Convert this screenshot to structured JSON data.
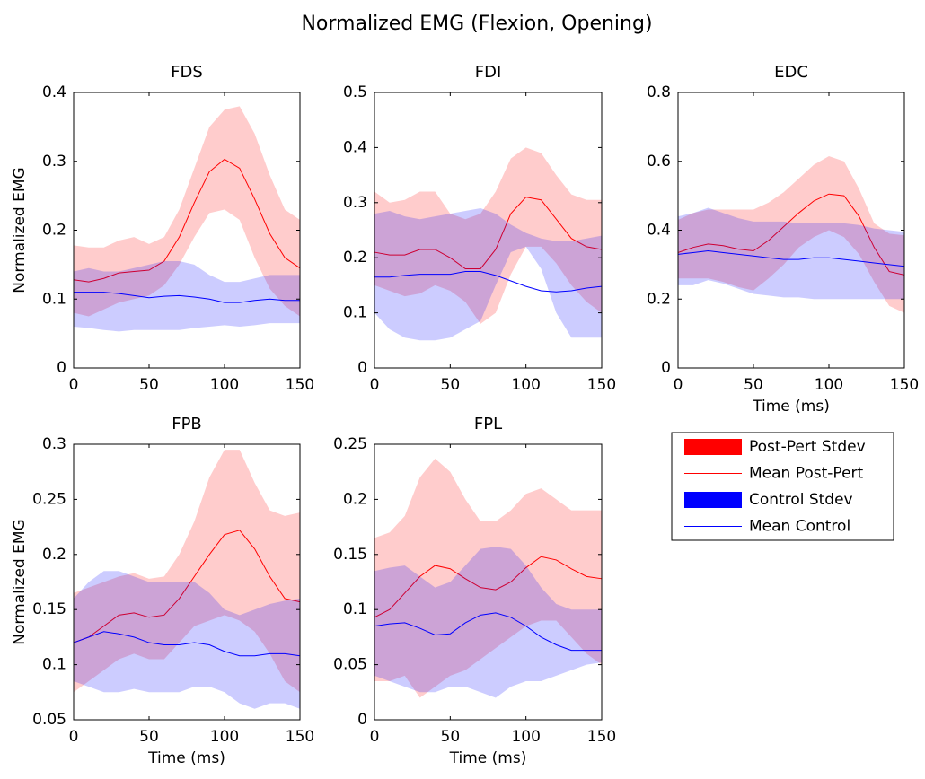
{
  "title": "Normalized EMG (Flexion, Opening)",
  "legend": [
    {
      "name": "Post-Pert Stdev",
      "color": "#ff0000"
    },
    {
      "name": "Mean Post-Pert",
      "color": "#ff0000"
    },
    {
      "name": "Control Stdev",
      "color": "#0000ff"
    },
    {
      "name": "Mean Control",
      "color": "#0000ff"
    }
  ],
  "chart_data": [
    {
      "type": "line",
      "title": "FDS",
      "ylabel": "Normalized EMG",
      "x": [
        0,
        10,
        20,
        30,
        40,
        50,
        60,
        70,
        80,
        90,
        100,
        110,
        120,
        130,
        140,
        150
      ],
      "xlim": [
        0,
        150
      ],
      "xticks": [
        0,
        50,
        100,
        150
      ],
      "ylim": [
        0,
        0.4
      ],
      "yticks": [
        0,
        0.1,
        0.2,
        0.3,
        0.4
      ],
      "series": [
        {
          "upper": [
            0.178,
            0.175,
            0.175,
            0.185,
            0.19,
            0.18,
            0.19,
            0.23,
            0.29,
            0.35,
            0.375,
            0.38,
            0.34,
            0.28,
            0.23,
            0.215
          ],
          "lower": [
            0.08,
            0.075,
            0.085,
            0.095,
            0.1,
            0.105,
            0.12,
            0.15,
            0.19,
            0.225,
            0.23,
            0.215,
            0.16,
            0.115,
            0.09,
            0.075
          ]
        },
        {
          "values": [
            0.128,
            0.125,
            0.13,
            0.138,
            0.14,
            0.142,
            0.155,
            0.19,
            0.24,
            0.285,
            0.303,
            0.29,
            0.245,
            0.195,
            0.16,
            0.145
          ]
        },
        {
          "upper": [
            0.14,
            0.145,
            0.14,
            0.14,
            0.145,
            0.15,
            0.155,
            0.155,
            0.15,
            0.135,
            0.125,
            0.125,
            0.13,
            0.135,
            0.135,
            0.135
          ],
          "lower": [
            0.06,
            0.058,
            0.055,
            0.053,
            0.055,
            0.055,
            0.055,
            0.055,
            0.058,
            0.06,
            0.062,
            0.06,
            0.062,
            0.065,
            0.065,
            0.065
          ]
        },
        {
          "values": [
            0.11,
            0.11,
            0.11,
            0.108,
            0.105,
            0.102,
            0.104,
            0.105,
            0.103,
            0.1,
            0.095,
            0.095,
            0.098,
            0.1,
            0.098,
            0.098
          ]
        }
      ]
    },
    {
      "type": "line",
      "title": "FDI",
      "x": [
        0,
        10,
        20,
        30,
        40,
        50,
        60,
        70,
        80,
        90,
        100,
        110,
        120,
        130,
        140,
        150
      ],
      "xlim": [
        0,
        150
      ],
      "xticks": [
        0,
        50,
        100,
        150
      ],
      "ylim": [
        0,
        0.5
      ],
      "yticks": [
        0,
        0.1,
        0.2,
        0.3,
        0.4,
        0.5
      ],
      "series": [
        {
          "upper": [
            0.32,
            0.3,
            0.305,
            0.32,
            0.32,
            0.28,
            0.27,
            0.28,
            0.32,
            0.38,
            0.4,
            0.39,
            0.35,
            0.315,
            0.305,
            0.305
          ],
          "lower": [
            0.15,
            0.14,
            0.13,
            0.135,
            0.15,
            0.14,
            0.12,
            0.08,
            0.1,
            0.17,
            0.22,
            0.22,
            0.19,
            0.15,
            0.12,
            0.1
          ]
        },
        {
          "values": [
            0.21,
            0.205,
            0.205,
            0.215,
            0.215,
            0.2,
            0.18,
            0.18,
            0.215,
            0.28,
            0.31,
            0.305,
            0.27,
            0.235,
            0.22,
            0.215
          ]
        },
        {
          "upper": [
            0.28,
            0.285,
            0.275,
            0.27,
            0.275,
            0.28,
            0.285,
            0.29,
            0.28,
            0.26,
            0.245,
            0.235,
            0.23,
            0.23,
            0.235,
            0.24
          ],
          "lower": [
            0.1,
            0.07,
            0.055,
            0.05,
            0.05,
            0.055,
            0.07,
            0.085,
            0.15,
            0.21,
            0.22,
            0.18,
            0.1,
            0.055,
            0.055,
            0.055
          ]
        },
        {
          "values": [
            0.165,
            0.165,
            0.168,
            0.17,
            0.17,
            0.17,
            0.175,
            0.175,
            0.168,
            0.158,
            0.148,
            0.14,
            0.138,
            0.14,
            0.145,
            0.148
          ]
        }
      ]
    },
    {
      "type": "line",
      "title": "EDC",
      "xlabel": "Time (ms)",
      "x": [
        0,
        10,
        20,
        30,
        40,
        50,
        60,
        70,
        80,
        90,
        100,
        110,
        120,
        130,
        140,
        150
      ],
      "xlim": [
        0,
        150
      ],
      "xticks": [
        0,
        50,
        100,
        150
      ],
      "ylim": [
        0,
        0.8
      ],
      "yticks": [
        0,
        0.2,
        0.4,
        0.6,
        0.8
      ],
      "series": [
        {
          "upper": [
            0.43,
            0.45,
            0.46,
            0.46,
            0.46,
            0.46,
            0.48,
            0.51,
            0.55,
            0.59,
            0.615,
            0.6,
            0.52,
            0.42,
            0.39,
            0.385
          ],
          "lower": [
            0.26,
            0.26,
            0.26,
            0.25,
            0.235,
            0.225,
            0.26,
            0.3,
            0.35,
            0.38,
            0.4,
            0.38,
            0.33,
            0.25,
            0.18,
            0.16
          ]
        },
        {
          "values": [
            0.335,
            0.35,
            0.36,
            0.355,
            0.345,
            0.34,
            0.37,
            0.41,
            0.45,
            0.485,
            0.505,
            0.5,
            0.44,
            0.35,
            0.28,
            0.27
          ]
        },
        {
          "upper": [
            0.44,
            0.45,
            0.465,
            0.45,
            0.435,
            0.425,
            0.425,
            0.425,
            0.42,
            0.42,
            0.42,
            0.42,
            0.415,
            0.405,
            0.4,
            0.395
          ],
          "lower": [
            0.24,
            0.24,
            0.255,
            0.245,
            0.23,
            0.215,
            0.21,
            0.205,
            0.205,
            0.2,
            0.2,
            0.2,
            0.2,
            0.2,
            0.2,
            0.2
          ]
        },
        {
          "values": [
            0.33,
            0.335,
            0.34,
            0.335,
            0.33,
            0.325,
            0.32,
            0.315,
            0.315,
            0.32,
            0.32,
            0.315,
            0.31,
            0.305,
            0.3,
            0.295
          ]
        }
      ]
    },
    {
      "type": "line",
      "title": "FPB",
      "xlabel": "Time (ms)",
      "ylabel": "Normalized EMG",
      "x": [
        0,
        10,
        20,
        30,
        40,
        50,
        60,
        70,
        80,
        90,
        100,
        110,
        120,
        130,
        140,
        150
      ],
      "xlim": [
        0,
        150
      ],
      "xticks": [
        0,
        50,
        100,
        150
      ],
      "ylim": [
        0.05,
        0.3
      ],
      "yticks": [
        0.05,
        0.1,
        0.15,
        0.2,
        0.25,
        0.3
      ],
      "series": [
        {
          "upper": [
            0.165,
            0.17,
            0.175,
            0.18,
            0.183,
            0.178,
            0.18,
            0.2,
            0.23,
            0.27,
            0.295,
            0.295,
            0.265,
            0.24,
            0.235,
            0.238
          ],
          "lower": [
            0.075,
            0.085,
            0.095,
            0.105,
            0.11,
            0.105,
            0.105,
            0.12,
            0.135,
            0.14,
            0.145,
            0.14,
            0.13,
            0.11,
            0.085,
            0.075
          ]
        },
        {
          "values": [
            0.12,
            0.125,
            0.135,
            0.145,
            0.147,
            0.143,
            0.145,
            0.16,
            0.18,
            0.2,
            0.218,
            0.222,
            0.205,
            0.18,
            0.16,
            0.157
          ]
        },
        {
          "upper": [
            0.16,
            0.175,
            0.185,
            0.185,
            0.18,
            0.175,
            0.175,
            0.175,
            0.175,
            0.165,
            0.15,
            0.145,
            0.15,
            0.155,
            0.158,
            0.16
          ],
          "lower": [
            0.085,
            0.08,
            0.075,
            0.075,
            0.078,
            0.075,
            0.075,
            0.075,
            0.08,
            0.08,
            0.075,
            0.065,
            0.06,
            0.065,
            0.065,
            0.06
          ]
        },
        {
          "values": [
            0.12,
            0.125,
            0.13,
            0.128,
            0.125,
            0.12,
            0.118,
            0.118,
            0.12,
            0.118,
            0.112,
            0.108,
            0.108,
            0.11,
            0.11,
            0.108
          ]
        }
      ]
    },
    {
      "type": "line",
      "title": "FPL",
      "xlabel": "Time (ms)",
      "x": [
        0,
        10,
        20,
        30,
        40,
        50,
        60,
        70,
        80,
        90,
        100,
        110,
        120,
        130,
        140,
        150
      ],
      "xlim": [
        0,
        150
      ],
      "xticks": [
        0,
        50,
        100,
        150
      ],
      "ylim": [
        0,
        0.25
      ],
      "yticks": [
        0,
        0.05,
        0.1,
        0.15,
        0.2,
        0.25
      ],
      "series": [
        {
          "upper": [
            0.165,
            0.17,
            0.185,
            0.22,
            0.237,
            0.225,
            0.2,
            0.18,
            0.18,
            0.19,
            0.205,
            0.21,
            0.2,
            0.19,
            0.19,
            0.19
          ],
          "lower": [
            0.035,
            0.035,
            0.04,
            0.02,
            0.03,
            0.04,
            0.045,
            0.055,
            0.065,
            0.075,
            0.085,
            0.09,
            0.09,
            0.075,
            0.06,
            0.05
          ]
        },
        {
          "values": [
            0.093,
            0.1,
            0.115,
            0.13,
            0.14,
            0.137,
            0.128,
            0.12,
            0.118,
            0.125,
            0.138,
            0.148,
            0.145,
            0.137,
            0.13,
            0.128
          ]
        },
        {
          "upper": [
            0.135,
            0.138,
            0.14,
            0.13,
            0.12,
            0.125,
            0.14,
            0.155,
            0.157,
            0.155,
            0.14,
            0.12,
            0.105,
            0.1,
            0.1,
            0.1
          ],
          "lower": [
            0.04,
            0.035,
            0.03,
            0.025,
            0.025,
            0.03,
            0.03,
            0.025,
            0.02,
            0.03,
            0.035,
            0.035,
            0.04,
            0.045,
            0.05,
            0.052
          ]
        },
        {
          "values": [
            0.085,
            0.087,
            0.088,
            0.083,
            0.077,
            0.078,
            0.088,
            0.095,
            0.097,
            0.093,
            0.085,
            0.075,
            0.068,
            0.063,
            0.063,
            0.063
          ]
        }
      ]
    }
  ]
}
